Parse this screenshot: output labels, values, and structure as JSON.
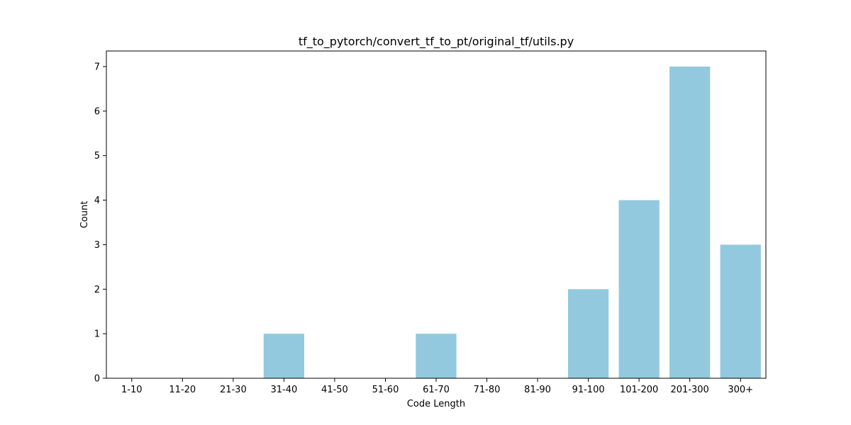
{
  "chart_data": {
    "type": "bar",
    "title": "tf_to_pytorch/convert_tf_to_pt/original_tf/utils.py",
    "xlabel": "Code Length",
    "ylabel": "Count",
    "categories": [
      "1-10",
      "11-20",
      "21-30",
      "31-40",
      "41-50",
      "51-60",
      "61-70",
      "71-80",
      "81-90",
      "91-100",
      "101-200",
      "201-300",
      "300+"
    ],
    "values": [
      0,
      0,
      0,
      1,
      0,
      0,
      1,
      0,
      0,
      2,
      4,
      7,
      3
    ],
    "ylim": [
      0,
      7.35
    ],
    "yticks": [
      0,
      1,
      2,
      3,
      4,
      5,
      6,
      7
    ],
    "grid": false,
    "bar_color": "#92c9de"
  }
}
